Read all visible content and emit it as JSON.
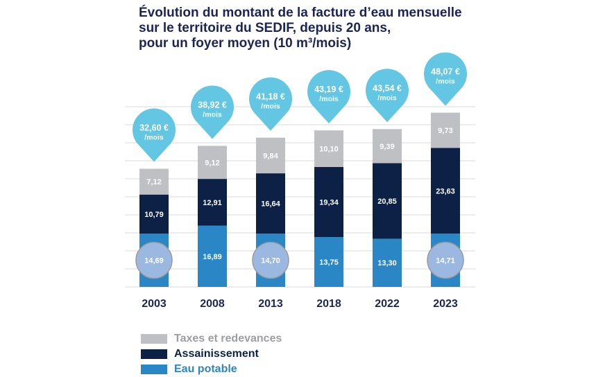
{
  "title_lines": [
    "Évolution du montant de la facture d’eau mensuelle",
    "sur le territoire du SEDIF, depuis 20 ans,",
    "pour un foyer moyen  (10 m³/mois)"
  ],
  "colors": {
    "eau_potable": "#2b86c5",
    "assainissement": "#0c2145",
    "taxes": "#bfc0c4",
    "pin": "#63c6e2",
    "title": "#1b2456",
    "grid": "#d9d9d9",
    "highlight_fill": "#9bb9e0",
    "highlight_stroke": "#9a9a9a"
  },
  "chart_data": {
    "type": "bar",
    "stacked": true,
    "title": "Évolution du montant de la facture d’eau mensuelle sur le territoire du SEDIF, depuis 20 ans, pour un foyer moyen (10 m³/mois)",
    "categories": [
      "2003",
      "2008",
      "2013",
      "2018",
      "2022",
      "2023"
    ],
    "series": [
      {
        "name": "Eau potable",
        "values": [
          14.69,
          16.89,
          14.7,
          13.75,
          13.3,
          14.71
        ],
        "labels": [
          "14,69",
          "16,89",
          "14,70",
          "13,75",
          "13,30",
          "14,71"
        ]
      },
      {
        "name": "Assainissement",
        "values": [
          10.79,
          12.91,
          16.64,
          19.34,
          20.85,
          23.63
        ],
        "labels": [
          "10,79",
          "12,91",
          "16,64",
          "19,34",
          "20,85",
          "23,63"
        ]
      },
      {
        "name": "Taxes et redevances",
        "values": [
          7.12,
          9.12,
          9.84,
          10.1,
          9.39,
          9.73
        ],
        "labels": [
          "7,12",
          "9,12",
          "9,84",
          "10,10",
          "9,39",
          "9,73"
        ]
      }
    ],
    "totals": [
      "32,60 €",
      "38,92 €",
      "41,18 €",
      "43,19 €",
      "43,54 €",
      "48,07 €"
    ],
    "total_unit": "/mois",
    "highlighted_eau_potable": [
      "2003",
      "2013",
      "2023"
    ],
    "ylim": [
      0,
      48.07
    ],
    "grid": true,
    "legend": [
      "Taxes et redevances",
      "Assainissement",
      "Eau potable"
    ],
    "legend_position": "bottom-left"
  }
}
